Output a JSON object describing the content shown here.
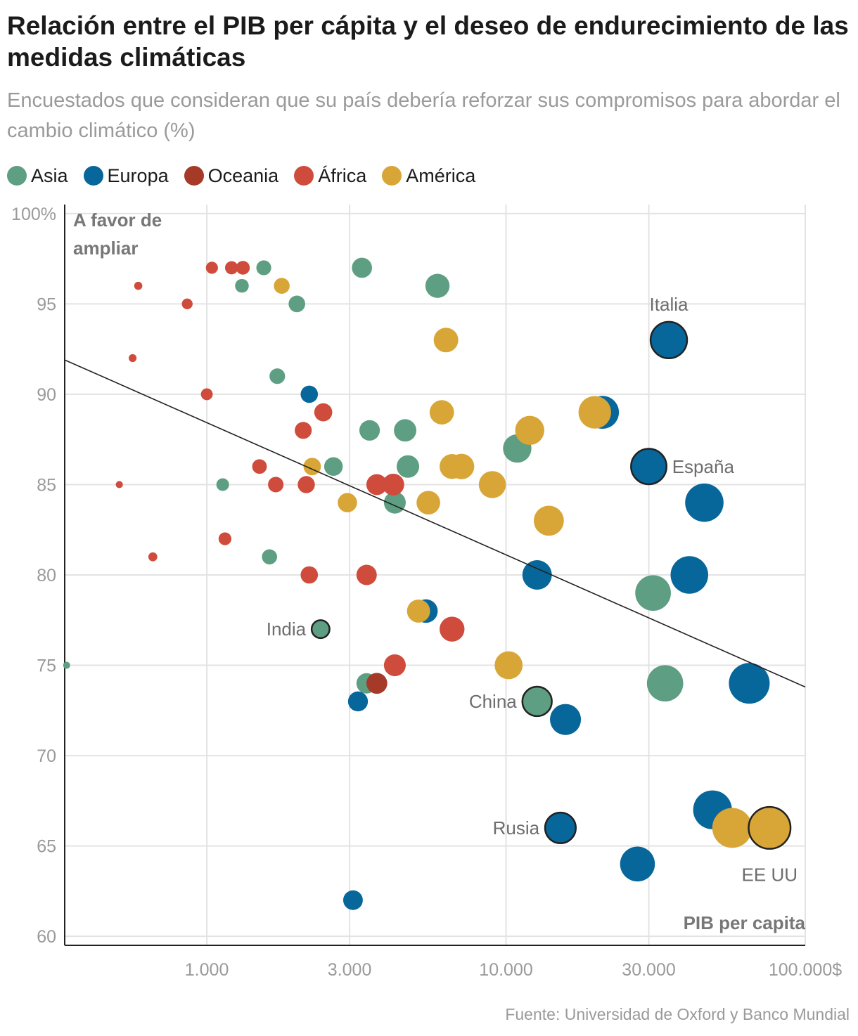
{
  "title": "Relación entre el PIB per cápita y el deseo de endurecimiento de las medidas climáticas",
  "subtitle": "Encuestados que consideran que su país debería reforzar sus compromisos para abordar el cambio climático (%)",
  "source": "Fuente: Universidad de Oxford y Banco Mundial",
  "legend": [
    {
      "key": "asia",
      "label": "Asia",
      "color": "#5e9e82"
    },
    {
      "key": "europa",
      "label": "Europa",
      "color": "#07669a"
    },
    {
      "key": "oceania",
      "label": "Oceania",
      "color": "#a63a28"
    },
    {
      "key": "africa",
      "label": "África",
      "color": "#cf4b3b"
    },
    {
      "key": "america",
      "label": "América",
      "color": "#d8a537"
    }
  ],
  "chart_data": {
    "type": "scatter",
    "title": "Relación entre el PIB per cápita y el deseo de endurecimiento de las medidas climáticas",
    "xlabel": "PIB per capita",
    "ylabel": "A favor de ampliar",
    "ylabel_lines": [
      "A favor de",
      "ampliar"
    ],
    "xscale": "log",
    "xlim": [
      335,
      100000
    ],
    "ylim": [
      59.5,
      100.5
    ],
    "x_ticks": [
      {
        "value": 1000,
        "label": "1.000"
      },
      {
        "value": 3000,
        "label": "3.000"
      },
      {
        "value": 10000,
        "label": "10.000"
      },
      {
        "value": 30000,
        "label": "30.000"
      },
      {
        "value": 100000,
        "label": "100.000$"
      }
    ],
    "y_ticks": [
      {
        "value": 100,
        "label": "100%"
      },
      {
        "value": 95,
        "label": "95"
      },
      {
        "value": 90,
        "label": "90"
      },
      {
        "value": 85,
        "label": "85"
      },
      {
        "value": 80,
        "label": "80"
      },
      {
        "value": 75,
        "label": "75"
      },
      {
        "value": 70,
        "label": "70"
      },
      {
        "value": 65,
        "label": "65"
      },
      {
        "value": 60,
        "label": "60"
      }
    ],
    "trend_line": [
      {
        "x": 335,
        "y": 91.9
      },
      {
        "x": 100000,
        "y": 73.8
      }
    ],
    "points": [
      {
        "x": 340,
        "y": 75,
        "r": "asia"
      },
      {
        "x": 3300,
        "y": 97,
        "r": "asia"
      },
      {
        "x": 1550,
        "y": 97,
        "r": "asia"
      },
      {
        "x": 1310,
        "y": 96,
        "r": "asia"
      },
      {
        "x": 5900,
        "y": 96,
        "r": "asia"
      },
      {
        "x": 2000,
        "y": 95,
        "r": "asia"
      },
      {
        "x": 1720,
        "y": 91,
        "r": "asia"
      },
      {
        "x": 3500,
        "y": 88,
        "r": "asia"
      },
      {
        "x": 4600,
        "y": 88,
        "r": "asia"
      },
      {
        "x": 10900,
        "y": 87,
        "r": "asia"
      },
      {
        "x": 2650,
        "y": 86,
        "r": "asia"
      },
      {
        "x": 4700,
        "y": 86,
        "r": "asia"
      },
      {
        "x": 1130,
        "y": 85,
        "r": "asia"
      },
      {
        "x": 4250,
        "y": 84,
        "r": "asia"
      },
      {
        "x": 1620,
        "y": 81,
        "r": "asia"
      },
      {
        "x": 31000,
        "y": 79,
        "r": "asia"
      },
      {
        "x": 34000,
        "y": 74,
        "r": "asia"
      },
      {
        "x": 3420,
        "y": 74,
        "r": "asia"
      },
      {
        "x": 2400,
        "y": 77,
        "r": "asia",
        "label": "India",
        "anchor": "left"
      },
      {
        "x": 12700,
        "y": 73,
        "r": "asia",
        "label": "China",
        "anchor": "left"
      },
      {
        "x": 35000,
        "y": 93,
        "r": "europa",
        "label": "Italia",
        "anchor": "top"
      },
      {
        "x": 21000,
        "y": 89,
        "r": "europa"
      },
      {
        "x": 2200,
        "y": 90,
        "r": "europa"
      },
      {
        "x": 30000,
        "y": 86,
        "r": "europa",
        "label": "España",
        "anchor": "right"
      },
      {
        "x": 46000,
        "y": 84,
        "r": "europa"
      },
      {
        "x": 41000,
        "y": 80,
        "r": "europa"
      },
      {
        "x": 12700,
        "y": 80,
        "r": "europa"
      },
      {
        "x": 5400,
        "y": 78,
        "r": "europa"
      },
      {
        "x": 3200,
        "y": 73,
        "r": "europa"
      },
      {
        "x": 15800,
        "y": 72,
        "r": "europa"
      },
      {
        "x": 65000,
        "y": 74,
        "r": "europa"
      },
      {
        "x": 49000,
        "y": 67,
        "r": "europa"
      },
      {
        "x": 15200,
        "y": 66,
        "r": "europa",
        "label": "Rusia",
        "anchor": "left"
      },
      {
        "x": 27500,
        "y": 64,
        "r": "europa"
      },
      {
        "x": 3080,
        "y": 62,
        "r": "europa"
      },
      {
        "x": 3700,
        "y": 74,
        "r": "oceania"
      },
      {
        "x": 1040,
        "y": 97,
        "r": "africa"
      },
      {
        "x": 1210,
        "y": 97,
        "r": "africa"
      },
      {
        "x": 1320,
        "y": 97,
        "r": "africa"
      },
      {
        "x": 590,
        "y": 96,
        "r": "africa"
      },
      {
        "x": 860,
        "y": 95,
        "r": "africa"
      },
      {
        "x": 565,
        "y": 92,
        "r": "africa"
      },
      {
        "x": 1000,
        "y": 90,
        "r": "africa"
      },
      {
        "x": 2450,
        "y": 89,
        "r": "africa"
      },
      {
        "x": 2100,
        "y": 88,
        "r": "africa"
      },
      {
        "x": 1500,
        "y": 86,
        "r": "africa"
      },
      {
        "x": 510,
        "y": 85,
        "r": "africa"
      },
      {
        "x": 1700,
        "y": 85,
        "r": "africa"
      },
      {
        "x": 2150,
        "y": 85,
        "r": "africa"
      },
      {
        "x": 3700,
        "y": 85,
        "r": "africa"
      },
      {
        "x": 4200,
        "y": 85,
        "r": "africa"
      },
      {
        "x": 1150,
        "y": 82,
        "r": "africa"
      },
      {
        "x": 660,
        "y": 81,
        "r": "africa"
      },
      {
        "x": 2200,
        "y": 80,
        "r": "africa"
      },
      {
        "x": 3420,
        "y": 80,
        "r": "africa"
      },
      {
        "x": 6600,
        "y": 77,
        "r": "africa"
      },
      {
        "x": 4250,
        "y": 75,
        "r": "africa"
      },
      {
        "x": 1780,
        "y": 96,
        "r": "america"
      },
      {
        "x": 6300,
        "y": 93,
        "r": "america"
      },
      {
        "x": 6100,
        "y": 89,
        "r": "america"
      },
      {
        "x": 12000,
        "y": 88,
        "r": "america"
      },
      {
        "x": 19800,
        "y": 89,
        "r": "america"
      },
      {
        "x": 2250,
        "y": 86,
        "r": "america"
      },
      {
        "x": 6600,
        "y": 86,
        "r": "america"
      },
      {
        "x": 7100,
        "y": 86,
        "r": "america"
      },
      {
        "x": 9000,
        "y": 85,
        "r": "america"
      },
      {
        "x": 2950,
        "y": 84,
        "r": "america"
      },
      {
        "x": 5500,
        "y": 84,
        "r": "america"
      },
      {
        "x": 13900,
        "y": 83,
        "r": "america"
      },
      {
        "x": 5100,
        "y": 78,
        "r": "america"
      },
      {
        "x": 10200,
        "y": 75,
        "r": "america"
      },
      {
        "x": 57000,
        "y": 66,
        "r": "america"
      },
      {
        "x": 76000,
        "y": 66,
        "r": "america",
        "label": "EE UU",
        "anchor": "below"
      }
    ]
  }
}
